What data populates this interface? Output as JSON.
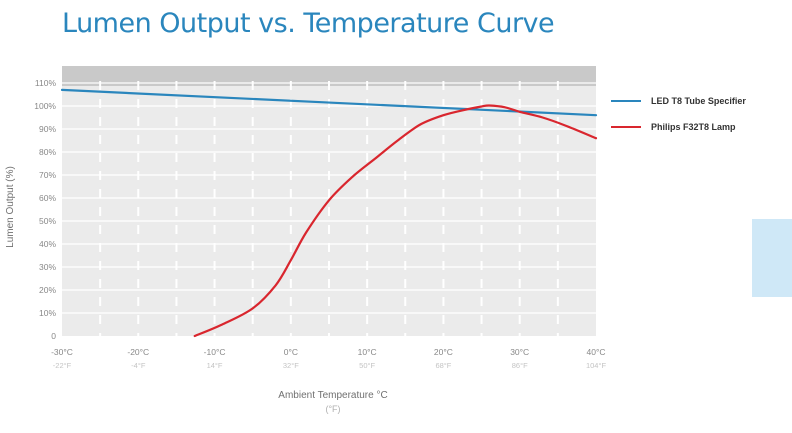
{
  "chart_data": {
    "type": "line",
    "title": "Lumen Output vs. Temperature Curve",
    "xlabel": "Ambient Temperature °C",
    "xlabel_sub": "(°F)",
    "ylabel": "Lumen Output (%)",
    "x_ticks": [
      {
        "c": "-30°C",
        "f": "-22°F"
      },
      {
        "c": "-20°C",
        "f": "-4°F"
      },
      {
        "c": "-10°C",
        "f": "14°F"
      },
      {
        "c": "0°C",
        "f": "32°F"
      },
      {
        "c": "10°C",
        "f": "50°F"
      },
      {
        "c": "20°C",
        "f": "68°F"
      },
      {
        "c": "30°C",
        "f": "86°F"
      },
      {
        "c": "40°C",
        "f": "104°F"
      }
    ],
    "y_ticks": [
      "0",
      "10%",
      "20%",
      "30%",
      "40%",
      "50%",
      "60%",
      "70%",
      "80%",
      "90%",
      "100%",
      "110%"
    ],
    "xlim": [
      -30,
      40
    ],
    "ylim": [
      0,
      120
    ],
    "grid": true,
    "legend_position": "right",
    "series": [
      {
        "name": "LED T8 Tube Specifier",
        "color": "#2a86bd",
        "x": [
          -30,
          40
        ],
        "y": [
          107,
          96
        ]
      },
      {
        "name": "Philips F32T8 Lamp",
        "color": "#d9262e",
        "x": [
          -12.6,
          -9,
          -5,
          -2,
          0,
          2,
          5,
          8,
          11,
          14,
          17,
          20,
          23,
          25,
          26,
          28,
          30,
          33,
          36,
          40
        ],
        "y": [
          0,
          5,
          12,
          22,
          33,
          45,
          59,
          69,
          77,
          85,
          92,
          96,
          98.5,
          99.8,
          100.2,
          99.5,
          97.5,
          95,
          91.5,
          86
        ]
      }
    ]
  }
}
